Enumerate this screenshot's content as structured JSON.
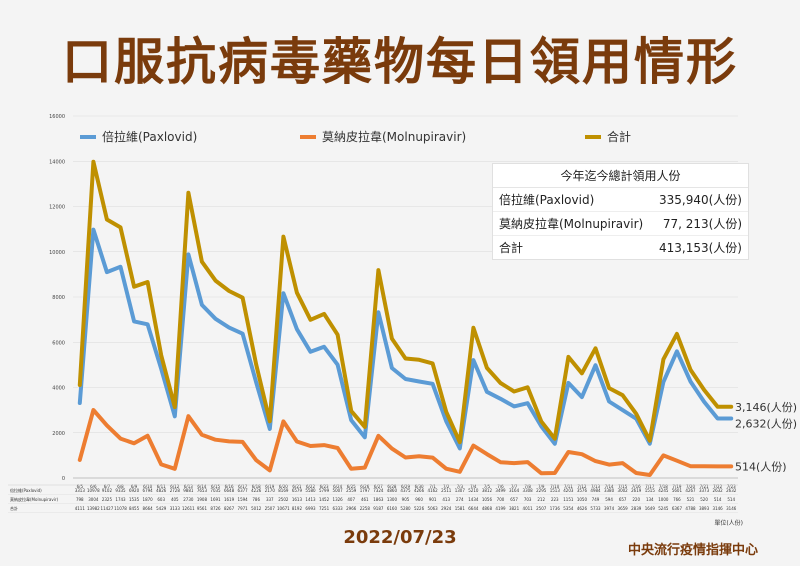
{
  "title": "口服抗病毒藥物每日領用情形",
  "date": "2022/07/23",
  "org": "中央流行疫情指揮中心",
  "unit_note": "單位(人份)",
  "summary": {
    "header": "今年迄今總計領用人份",
    "rows": [
      {
        "label": "倍拉維(Paxlovid)",
        "value": "335,940(人份)"
      },
      {
        "label": "莫納皮拉韋(Molnupiravir)",
        "value": "77, 213(人份)"
      },
      {
        "label": "合計",
        "value": "413,153(人份)"
      }
    ]
  },
  "colors": {
    "paxlovid": "#5b9bd5",
    "molnupiravir": "#ed7d31",
    "total": "#bf9000",
    "title": "#7a3b0c"
  },
  "chart_data": {
    "type": "line",
    "ylim": [
      0,
      16000
    ],
    "yticks": [
      "0",
      "2000",
      "4000",
      "6000",
      "8000",
      "10000",
      "12000",
      "14000",
      "16000"
    ],
    "x": [
      "6/5",
      "6/6",
      "6/7",
      "6/8",
      "6/9",
      "6/10",
      "6/11",
      "6/12",
      "6/13",
      "6/14",
      "6/15",
      "6/16",
      "6/17",
      "6/18",
      "6/19",
      "6/20",
      "6/21",
      "6/22",
      "6/23",
      "6/24",
      "6/25",
      "6/26",
      "6/27",
      "6/28",
      "6/29",
      "6/30",
      "7/1",
      "7/2",
      "7/3",
      "7/4",
      "7/5",
      "7/6",
      "7/7",
      "7/8",
      "7/9",
      "7/10",
      "7/11",
      "7/12",
      "7/13",
      "7/14",
      "7/15",
      "7/16",
      "7/17",
      "7/18",
      "7/19",
      "7/20",
      "7/21",
      "7/22",
      "7/23"
    ],
    "series": [
      {
        "name": "倍拉維(Paxlovid)",
        "values": [
          3313,
          10978,
          9102,
          9335,
          6920,
          6794,
          4826,
          2728,
          9881,
          7653,
          7035,
          6648,
          6377,
          4226,
          2170,
          8169,
          6579,
          5580,
          5799,
          5007,
          2559,
          1797,
          7324,
          4860,
          4375,
          4266,
          4162,
          2511,
          1307,
          5210,
          3812,
          3499,
          3164,
          3308,
          2295,
          1513,
          4203,
          3576,
          4984,
          3380,
          3002,
          2619,
          1515,
          4245,
          5601,
          4267,
          3373,
          2632,
          2632
        ],
        "end_label": "2,632(人份)"
      },
      {
        "name": "莫納皮拉韋(Molnupiravir)",
        "values": [
          798,
          3004,
          2325,
          1743,
          1535,
          1870,
          603,
          405,
          2730,
          1908,
          1691,
          1619,
          1594,
          786,
          337,
          2502,
          1613,
          1413,
          1452,
          1326,
          407,
          461,
          1863,
          1300,
          905,
          960,
          901,
          413,
          274,
          1434,
          1056,
          700,
          657,
          703,
          212,
          223,
          1151,
          1050,
          749,
          594,
          657,
          220,
          134,
          1000,
          766,
          521,
          520,
          514,
          514
        ],
        "end_label": "514(人份)"
      },
      {
        "name": "合計",
        "values": [
          4111,
          13982,
          11427,
          11078,
          8455,
          8664,
          5429,
          3133,
          12611,
          9561,
          8726,
          8267,
          7971,
          5012,
          2507,
          10671,
          8192,
          6993,
          7251,
          6333,
          2966,
          2258,
          9187,
          6160,
          5280,
          5226,
          5063,
          2924,
          1581,
          6644,
          4868,
          4199,
          3821,
          4011,
          2507,
          1736,
          5354,
          4626,
          5733,
          3974,
          3659,
          2839,
          1649,
          5245,
          6367,
          4788,
          3893,
          3146,
          3146
        ],
        "end_label": "3,146(人份)"
      }
    ]
  }
}
